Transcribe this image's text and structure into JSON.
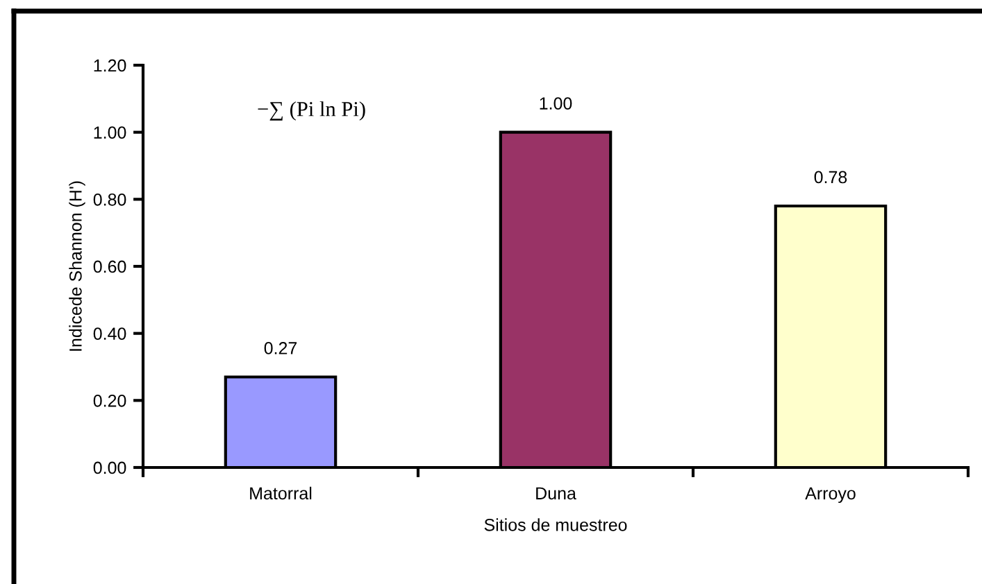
{
  "chart_data": {
    "type": "bar",
    "xlabel": "Sitios de muestreo",
    "ylabel": "Indicede Shannon (H')",
    "categories": [
      "Matorral",
      "Duna",
      "Arroyo"
    ],
    "values": [
      0.27,
      1.0,
      0.78
    ],
    "colors": [
      "#9999ff",
      "#993366",
      "#ffffcc"
    ],
    "value_labels": [
      "0.27",
      "1.00",
      "0.78"
    ],
    "ylim": [
      0,
      1.2
    ],
    "yticks": [
      {
        "value": 0,
        "label": "0.00"
      },
      {
        "value": 0.2,
        "label": "0.20"
      },
      {
        "value": 0.4,
        "label": "0.40"
      },
      {
        "value": 0.6,
        "label": "0.60"
      },
      {
        "value": 0.8,
        "label": "0.80"
      },
      {
        "value": 1.0,
        "label": "1.00"
      },
      {
        "value": 1.2,
        "label": "1.20"
      }
    ],
    "annotations": [
      "−∑ (Pi ln Pi)"
    ],
    "grid": false,
    "legend": false
  }
}
